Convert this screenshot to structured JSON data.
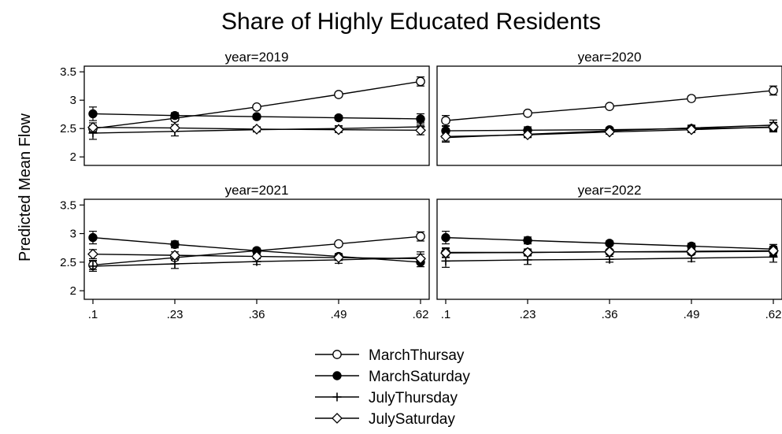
{
  "chart_data": {
    "type": "line",
    "title": "Share of Highly Educated Residents",
    "ylabel": "Predicted Mean Flow",
    "xlabel": "",
    "x": [
      0.1,
      0.23,
      0.36,
      0.49,
      0.62
    ],
    "x_tick_labels": [
      ".1",
      ".23",
      ".36",
      ".49",
      ".62"
    ],
    "y_ticks": [
      2,
      2.5,
      3,
      3.5
    ],
    "y_tick_labels": [
      "2",
      "2.5",
      "3",
      "3.5"
    ],
    "ylim": [
      1.85,
      3.6
    ],
    "grid": false,
    "legend_position": "bottom",
    "panels": [
      {
        "title": "year=2019",
        "series": [
          {
            "name": "MarchThursay",
            "marker": "circle-open",
            "values": [
              2.5,
              2.68,
              2.88,
              3.1,
              3.33
            ],
            "ci": [
              [
                2.44,
                2.56
              ],
              [
                2.63,
                2.73
              ],
              [
                2.85,
                2.91
              ],
              [
                3.06,
                3.14
              ],
              [
                3.25,
                3.41
              ]
            ]
          },
          {
            "name": "MarchSaturday",
            "marker": "circle-filled",
            "values": [
              2.76,
              2.73,
              2.71,
              2.69,
              2.67
            ],
            "ci": [
              [
                2.64,
                2.88
              ],
              [
                2.68,
                2.78
              ],
              [
                2.67,
                2.75
              ],
              [
                2.65,
                2.73
              ],
              [
                2.58,
                2.76
              ]
            ]
          },
          {
            "name": "JulyThursday",
            "marker": "plus",
            "values": [
              2.42,
              2.45,
              2.48,
              2.5,
              2.53
            ],
            "ci": [
              [
                2.31,
                2.53
              ],
              [
                2.37,
                2.53
              ],
              [
                2.44,
                2.52
              ],
              [
                2.45,
                2.55
              ],
              [
                2.45,
                2.61
              ]
            ]
          },
          {
            "name": "JulySaturday",
            "marker": "diamond-open",
            "values": [
              2.52,
              2.51,
              2.49,
              2.48,
              2.47
            ],
            "ci": [
              [
                2.44,
                2.6
              ],
              [
                2.45,
                2.57
              ],
              [
                2.45,
                2.53
              ],
              [
                2.43,
                2.53
              ],
              [
                2.39,
                2.55
              ]
            ]
          }
        ]
      },
      {
        "title": "year=2020",
        "series": [
          {
            "name": "MarchThursay",
            "marker": "circle-open",
            "values": [
              2.64,
              2.77,
              2.89,
              3.03,
              3.17
            ],
            "ci": [
              [
                2.55,
                2.73
              ],
              [
                2.73,
                2.81
              ],
              [
                2.86,
                2.92
              ],
              [
                2.99,
                3.07
              ],
              [
                3.09,
                3.25
              ]
            ]
          },
          {
            "name": "MarchSaturday",
            "marker": "circle-filled",
            "values": [
              2.46,
              2.47,
              2.48,
              2.5,
              2.52
            ],
            "ci": [
              [
                2.38,
                2.54
              ],
              [
                2.41,
                2.53
              ],
              [
                2.44,
                2.52
              ],
              [
                2.45,
                2.55
              ],
              [
                2.44,
                2.6
              ]
            ]
          },
          {
            "name": "JulyThursday",
            "marker": "plus",
            "values": [
              2.34,
              2.4,
              2.46,
              2.51,
              2.56
            ],
            "ci": [
              [
                2.26,
                2.42
              ],
              [
                2.35,
                2.45
              ],
              [
                2.42,
                2.5
              ],
              [
                2.46,
                2.56
              ],
              [
                2.47,
                2.65
              ]
            ]
          },
          {
            "name": "JulySaturday",
            "marker": "diamond-open",
            "values": [
              2.36,
              2.39,
              2.44,
              2.48,
              2.53
            ],
            "ci": [
              [
                2.28,
                2.44
              ],
              [
                2.34,
                2.44
              ],
              [
                2.4,
                2.48
              ],
              [
                2.43,
                2.53
              ],
              [
                2.45,
                2.61
              ]
            ]
          }
        ]
      },
      {
        "title": "year=2021",
        "series": [
          {
            "name": "MarchThursay",
            "marker": "circle-open",
            "values": [
              2.45,
              2.58,
              2.7,
              2.82,
              2.95
            ],
            "ci": [
              [
                2.37,
                2.53
              ],
              [
                2.53,
                2.63
              ],
              [
                2.66,
                2.74
              ],
              [
                2.78,
                2.86
              ],
              [
                2.87,
                3.03
              ]
            ]
          },
          {
            "name": "MarchSaturday",
            "marker": "circle-filled",
            "values": [
              2.93,
              2.81,
              2.7,
              2.6,
              2.5
            ],
            "ci": [
              [
                2.82,
                3.04
              ],
              [
                2.75,
                2.87
              ],
              [
                2.66,
                2.74
              ],
              [
                2.55,
                2.65
              ],
              [
                2.42,
                2.58
              ]
            ]
          },
          {
            "name": "JulyThursday",
            "marker": "plus",
            "values": [
              2.43,
              2.47,
              2.51,
              2.54,
              2.58
            ],
            "ci": [
              [
                2.34,
                2.52
              ],
              [
                2.39,
                2.55
              ],
              [
                2.46,
                2.56
              ],
              [
                2.48,
                2.6
              ],
              [
                2.48,
                2.68
              ]
            ]
          },
          {
            "name": "JulySaturday",
            "marker": "diamond-open",
            "values": [
              2.64,
              2.62,
              2.6,
              2.58,
              2.56
            ],
            "ci": [
              [
                2.56,
                2.72
              ],
              [
                2.56,
                2.68
              ],
              [
                2.56,
                2.64
              ],
              [
                2.53,
                2.63
              ],
              [
                2.48,
                2.64
              ]
            ]
          }
        ]
      },
      {
        "title": "year=2022",
        "series": [
          {
            "name": "MarchThursay",
            "marker": "circle-open",
            "values": [
              2.67,
              2.67,
              2.68,
              2.68,
              2.69
            ],
            "ci": [
              [
                2.59,
                2.75
              ],
              [
                2.61,
                2.73
              ],
              [
                2.64,
                2.72
              ],
              [
                2.63,
                2.73
              ],
              [
                2.61,
                2.77
              ]
            ]
          },
          {
            "name": "MarchSaturday",
            "marker": "circle-filled",
            "values": [
              2.93,
              2.88,
              2.83,
              2.78,
              2.73
            ],
            "ci": [
              [
                2.82,
                3.04
              ],
              [
                2.82,
                2.94
              ],
              [
                2.79,
                2.87
              ],
              [
                2.73,
                2.83
              ],
              [
                2.65,
                2.81
              ]
            ]
          },
          {
            "name": "JulyThursday",
            "marker": "plus",
            "values": [
              2.52,
              2.54,
              2.55,
              2.57,
              2.59
            ],
            "ci": [
              [
                2.41,
                2.63
              ],
              [
                2.46,
                2.62
              ],
              [
                2.5,
                2.6
              ],
              [
                2.51,
                2.63
              ],
              [
                2.5,
                2.68
              ]
            ]
          },
          {
            "name": "JulySaturday",
            "marker": "diamond-open",
            "values": [
              2.66,
              2.67,
              2.68,
              2.69,
              2.7
            ],
            "ci": [
              [
                2.58,
                2.74
              ],
              [
                2.61,
                2.73
              ],
              [
                2.64,
                2.72
              ],
              [
                2.64,
                2.74
              ],
              [
                2.62,
                2.78
              ]
            ]
          }
        ]
      }
    ],
    "legend": [
      {
        "label": "MarchThursay",
        "marker": "circle-open"
      },
      {
        "label": "MarchSaturday",
        "marker": "circle-filled"
      },
      {
        "label": "JulyThursday",
        "marker": "plus"
      },
      {
        "label": "JulySaturday",
        "marker": "diamond-open"
      }
    ],
    "colors": {
      "line": "#000000",
      "background": "#ffffff"
    }
  }
}
